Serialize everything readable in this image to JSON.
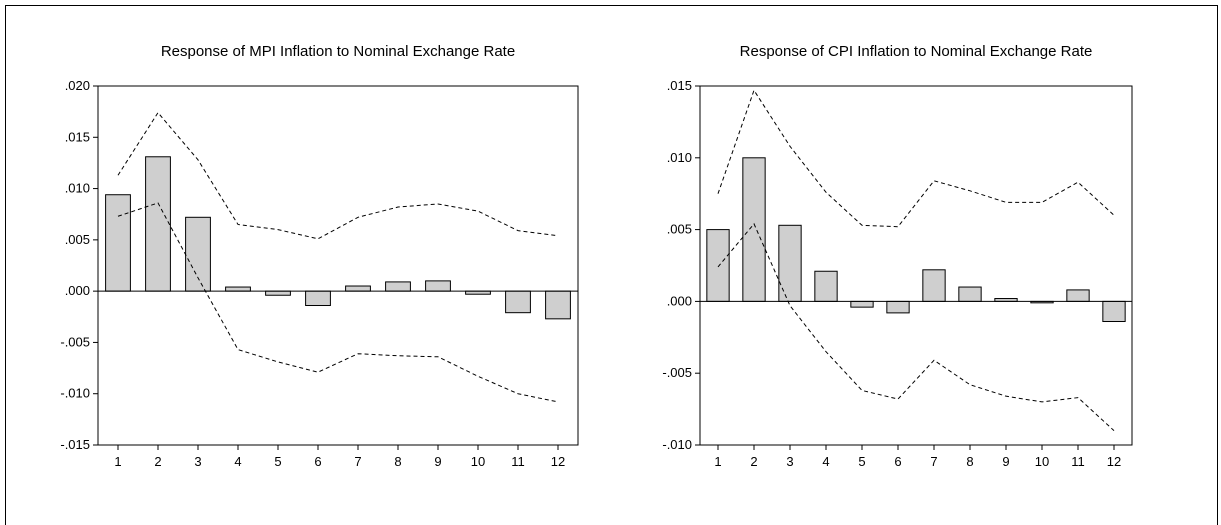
{
  "chart_data": [
    {
      "type": "bar",
      "title": "Response of MPI Inflation to Nominal Exchange Rate",
      "categories": [
        "1",
        "2",
        "3",
        "4",
        "5",
        "6",
        "7",
        "8",
        "9",
        "10",
        "11",
        "12"
      ],
      "ylim": [
        -0.015,
        0.02
      ],
      "yticks": [
        ".020",
        ".015",
        ".010",
        ".005",
        ".000",
        "-.005",
        "-.010",
        "-.015"
      ],
      "ytick_values": [
        0.02,
        0.015,
        0.01,
        0.005,
        0.0,
        -0.005,
        -0.01,
        -0.015
      ],
      "series": [
        {
          "values": [
            0.0094,
            0.0131,
            0.0072,
            0.0004,
            -0.0004,
            -0.0014,
            0.0005,
            0.0009,
            0.001,
            -0.0003,
            -0.0021,
            -0.0027
          ]
        }
      ],
      "upper_band": [
        0.0113,
        0.0174,
        0.0128,
        0.0065,
        0.006,
        0.0051,
        0.0072,
        0.0082,
        0.0085,
        0.0078,
        0.0059,
        0.0054
      ],
      "lower_band": [
        0.0073,
        0.0086,
        0.0013,
        -0.0057,
        -0.0069,
        -0.0079,
        -0.0061,
        -0.0063,
        -0.0064,
        -0.0083,
        -0.01,
        -0.0108
      ],
      "grid": false
    },
    {
      "type": "bar",
      "title": "Response of CPI Inflation to Nominal Exchange Rate",
      "categories": [
        "1",
        "2",
        "3",
        "4",
        "5",
        "6",
        "7",
        "8",
        "9",
        "10",
        "11",
        "12"
      ],
      "ylim": [
        -0.01,
        0.015
      ],
      "yticks": [
        ".015",
        ".010",
        ".005",
        ".000",
        "-.005",
        "-.010"
      ],
      "ytick_values": [
        0.015,
        0.01,
        0.005,
        0.0,
        -0.005,
        -0.01
      ],
      "series": [
        {
          "values": [
            0.005,
            0.01,
            0.0053,
            0.0021,
            -0.0004,
            -0.0008,
            0.0022,
            0.001,
            0.0002,
            -0.0001,
            0.0008,
            -0.0014
          ]
        }
      ],
      "upper_band": [
        0.0075,
        0.0147,
        0.0108,
        0.0076,
        0.0053,
        0.0052,
        0.0084,
        0.0077,
        0.0069,
        0.0069,
        0.0083,
        0.006
      ],
      "lower_band": [
        0.0024,
        0.0054,
        -0.0003,
        -0.0035,
        -0.0062,
        -0.0068,
        -0.0041,
        -0.0058,
        -0.0066,
        -0.007,
        -0.0067,
        -0.009
      ],
      "grid": false
    }
  ]
}
